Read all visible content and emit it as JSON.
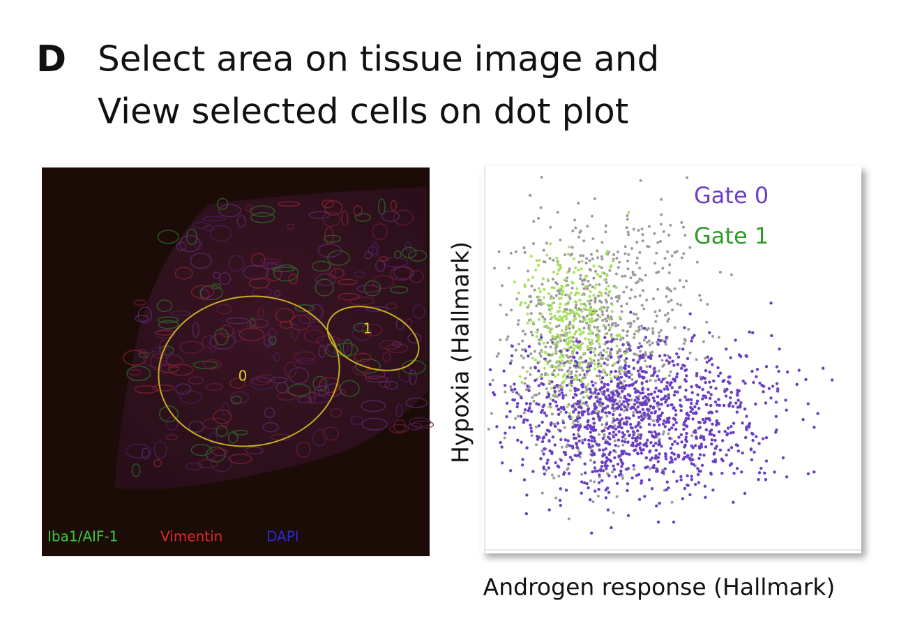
{
  "panel_label": "D",
  "title": [
    "Select area on tissue image and",
    "View selected cells on dot plot"
  ],
  "tissue_image": {
    "legend": [
      "Iba1/AIF-1",
      "Vimentin",
      "DAPI"
    ],
    "gates": [
      "0",
      "1"
    ]
  },
  "dot_plot": {
    "legend": [
      "Gate 0",
      "Gate 1"
    ],
    "x_label": "Androgen response (Hallmark)",
    "y_label": "Hypoxia (Hallmark)"
  }
}
